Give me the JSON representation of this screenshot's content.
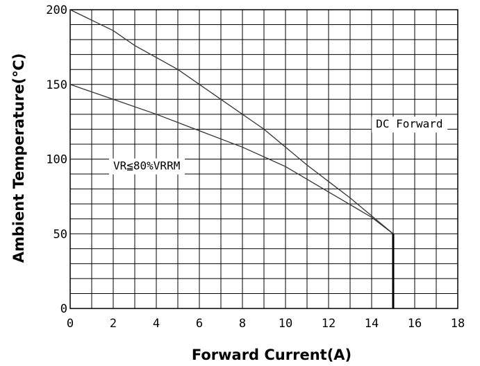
{
  "chart_data": {
    "type": "line",
    "title": "",
    "xlabel": "Forward Current(A)",
    "ylabel": "Ambient Temperature(℃)",
    "xlim": [
      0,
      18
    ],
    "ylim": [
      0,
      200
    ],
    "x_ticks": [
      "0",
      "2",
      "4",
      "6",
      "8",
      "10",
      "12",
      "14",
      "16",
      "18"
    ],
    "y_ticks": [
      "0",
      "50",
      "100",
      "150",
      "200"
    ],
    "grid": true,
    "legend": "none",
    "series": [
      {
        "name": "DC Forward",
        "x": [
          0,
          2,
          3,
          5,
          7,
          9,
          10,
          11,
          12,
          13,
          14,
          15
        ],
        "y": [
          200,
          186,
          176,
          160,
          140,
          120,
          108,
          96,
          85,
          74,
          62,
          50
        ]
      },
      {
        "name": "VR≦80%VRRM",
        "x": [
          0,
          2,
          4,
          6,
          8,
          10,
          12,
          14,
          15
        ],
        "y": [
          150,
          140,
          130,
          119,
          108,
          95,
          78,
          61,
          50
        ]
      }
    ],
    "annotations": [
      {
        "text": "DC Forward",
        "x": 14.2,
        "y": 121
      },
      {
        "text": "VR≦80%VRRM",
        "x": 2.0,
        "y": 93
      }
    ],
    "drop_line": {
      "x": 15,
      "y_from": 50,
      "y_to": 0
    }
  }
}
